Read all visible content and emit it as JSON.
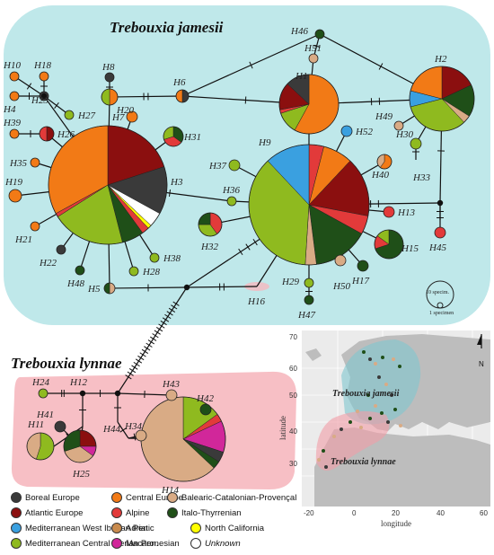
{
  "titles": {
    "jamesii": "Trebouxia jamesii",
    "lynnae": "Trebouxia lynnae"
  },
  "colors": {
    "boreal": "#3a3a3a",
    "atlantic": "#8b0f0f",
    "med_west_iberian": "#3aa0e0",
    "med_central_iberian": "#8fba1f",
    "central_europe": "#f27a16",
    "alpine": "#e23a3a",
    "adriatic": "#c98b4e",
    "macaronesian": "#d1279a",
    "balearic": "#d9ab85",
    "italo": "#1f4f18",
    "north_california": "#ffff00",
    "unknown": "#ffffff",
    "jamesii_bg": "#bfe8ea",
    "lynnae_bg": "#f6b8bf"
  },
  "legend": [
    {
      "key": "boreal",
      "label": "Boreal Europe"
    },
    {
      "key": "central_europe",
      "label": "Central Europe"
    },
    {
      "key": "balearic",
      "label": "Balearic-Catalonian-Provençal"
    },
    {
      "key": "atlantic",
      "label": "Atlantic Europe"
    },
    {
      "key": "alpine",
      "label": "Alpine"
    },
    {
      "key": "italo",
      "label": "Italo-Thyrrenian"
    },
    {
      "key": "med_west_iberian",
      "label": "Mediterranean West Iberian Pen."
    },
    {
      "key": "adriatic",
      "label": "Adriatic"
    },
    {
      "key": "north_california",
      "label": "North California"
    },
    {
      "key": "med_central_iberian",
      "label": "Mediterranean Central Iberian Pen."
    },
    {
      "key": "macaronesian",
      "label": "Macaronesian"
    },
    {
      "key": "unknown",
      "label": "Unknown"
    }
  ],
  "scale": {
    "big": "10 specim.",
    "small": "1 specimen"
  },
  "map": {
    "title_jamesii": "Trebouxia jamesii",
    "title_lynnae": "Trebouxia lynnae",
    "ylabel": "latitude",
    "xlabel": "longitude",
    "x_ticks": [
      "-20",
      "0",
      "20",
      "40",
      "60"
    ],
    "y_ticks": [
      "70",
      "60",
      "50",
      "40",
      "30"
    ],
    "north": "N"
  },
  "haplotypes": [
    {
      "id": "H1",
      "label": "H1",
      "slices": [
        [
          "central_europe",
          0.58
        ],
        [
          "med_central_iberian",
          0.12
        ],
        [
          "alpine",
          0.02
        ],
        [
          "atlantic",
          0.15
        ],
        [
          "boreal",
          0.13
        ]
      ]
    },
    {
      "id": "H2",
      "label": "H2",
      "slices": [
        [
          "atlantic",
          0.18
        ],
        [
          "italo",
          0.16
        ],
        [
          "balearic",
          0.04
        ],
        [
          "med_central_iberian",
          0.33
        ],
        [
          "med_west_iberian",
          0.08
        ],
        [
          "central_europe",
          0.21
        ]
      ]
    },
    {
      "id": "H3",
      "label": "H3",
      "slices": [
        [
          "atlantic",
          0.2
        ],
        [
          "boreal",
          0.13
        ],
        [
          "unknown",
          0.04
        ],
        [
          "north_california",
          0.01
        ],
        [
          "alpine",
          0.02
        ],
        [
          "italo",
          0.06
        ],
        [
          "med_central_iberian",
          0.2
        ],
        [
          "alpine",
          0.01
        ],
        [
          "central_europe",
          0.33
        ]
      ]
    },
    {
      "id": "H5",
      "label": "H5",
      "slices": [
        [
          "balearic",
          0.5
        ],
        [
          "italo",
          0.5
        ]
      ]
    },
    {
      "id": "H6",
      "label": "H6",
      "slices": [
        [
          "boreal",
          0.5
        ],
        [
          "central_europe",
          0.5
        ]
      ]
    },
    {
      "id": "H7",
      "label": "H7",
      "slices": [
        [
          "central_europe",
          1
        ]
      ]
    },
    {
      "id": "H9",
      "label": "H9",
      "slices": [
        [
          "alpine",
          0.04
        ],
        [
          "central_europe",
          0.08
        ],
        [
          "atlantic",
          0.16
        ],
        [
          "alpine",
          0.05
        ],
        [
          "italo",
          0.15
        ],
        [
          "balearic",
          0.03
        ],
        [
          "med_central_iberian",
          0.37
        ],
        [
          "med_west_iberian",
          0.12
        ]
      ]
    },
    {
      "id": "H14",
      "label": "H14",
      "slices": [
        [
          "med_central_iberian",
          0.15
        ],
        [
          "alpine",
          0.03
        ],
        [
          "macaronesian",
          0.12
        ],
        [
          "boreal",
          0.04
        ],
        [
          "italo",
          0.03
        ],
        [
          "balearic",
          0.63
        ]
      ]
    },
    {
      "id": "H15",
      "label": "H15",
      "slices": [
        [
          "italo",
          0.7
        ],
        [
          "alpine",
          0.15
        ],
        [
          "med_central_iberian",
          0.15
        ]
      ]
    },
    {
      "id": "H25",
      "label": "H25",
      "slices": [
        [
          "atlantic",
          0.25
        ],
        [
          "macaronesian",
          0.1
        ],
        [
          "balearic",
          0.35
        ],
        [
          "italo",
          0.3
        ]
      ]
    },
    {
      "id": "H11",
      "label": "H11",
      "slices": [
        [
          "med_central_iberian",
          0.55
        ],
        [
          "balearic",
          0.45
        ]
      ]
    },
    {
      "id": "H31",
      "label": "H31",
      "slices": [
        [
          "italo",
          0.35
        ],
        [
          "alpine",
          0.35
        ],
        [
          "med_central_iberian",
          0.3
        ]
      ]
    },
    {
      "id": "H32",
      "label": "H32",
      "slices": [
        [
          "alpine",
          0.4
        ],
        [
          "med_central_iberian",
          0.35
        ],
        [
          "italo",
          0.25
        ]
      ]
    },
    {
      "id": "H20",
      "label": "H20",
      "slices": [
        [
          "central_europe",
          0.5
        ],
        [
          "med_central_iberian",
          0.5
        ]
      ]
    },
    {
      "id": "H26",
      "label": "H26",
      "slices": [
        [
          "atlantic",
          0.5
        ],
        [
          "alpine",
          0.5
        ]
      ]
    },
    {
      "id": "H40",
      "label": "H40",
      "slices": [
        [
          "central_europe",
          0.6
        ],
        [
          "balearic",
          0.4
        ]
      ]
    },
    {
      "id": "H30",
      "label": "H30",
      "slices": [
        [
          "med_central_iberian",
          1
        ]
      ]
    },
    {
      "id": "H8",
      "label": "H8",
      "slices": [
        [
          "boreal",
          1
        ]
      ]
    },
    {
      "id": "H10",
      "label": "H10",
      "slices": [
        [
          "central_europe",
          1
        ]
      ]
    },
    {
      "id": "H18",
      "label": "H18",
      "slices": [
        [
          "central_europe",
          1
        ]
      ]
    },
    {
      "id": "H4",
      "label": "H4",
      "slices": [
        [
          "central_europe",
          1
        ]
      ]
    },
    {
      "id": "H23",
      "label": "H23",
      "slices": [
        [
          "boreal",
          1
        ]
      ]
    },
    {
      "id": "H27",
      "label": "H27",
      "slices": [
        [
          "med_central_iberian",
          1
        ]
      ]
    },
    {
      "id": "H39",
      "label": "H39",
      "slices": [
        [
          "central_europe",
          1
        ]
      ]
    },
    {
      "id": "H35",
      "label": "H35",
      "slices": [
        [
          "central_europe",
          1
        ]
      ]
    },
    {
      "id": "H19",
      "label": "H19",
      "slices": [
        [
          "central_europe",
          1
        ]
      ]
    },
    {
      "id": "H21",
      "label": "H21",
      "slices": [
        [
          "central_europe",
          1
        ]
      ]
    },
    {
      "id": "H22",
      "label": "H22",
      "slices": [
        [
          "boreal",
          1
        ]
      ]
    },
    {
      "id": "H48",
      "label": "H48",
      "slices": [
        [
          "italo",
          1
        ]
      ]
    },
    {
      "id": "H28",
      "label": "H28",
      "slices": [
        [
          "med_central_iberian",
          1
        ]
      ]
    },
    {
      "id": "H38",
      "label": "H38",
      "slices": [
        [
          "med_central_iberian",
          1
        ]
      ]
    },
    {
      "id": "H36",
      "label": "H36",
      "slices": [
        [
          "med_central_iberian",
          1
        ]
      ]
    },
    {
      "id": "H37",
      "label": "H37",
      "slices": [
        [
          "med_central_iberian",
          1
        ]
      ]
    },
    {
      "id": "H46",
      "label": "H46",
      "slices": [
        [
          "italo",
          1
        ]
      ]
    },
    {
      "id": "H51",
      "label": "H51",
      "slices": [
        [
          "balearic",
          1
        ]
      ]
    },
    {
      "id": "H49",
      "label": "H49",
      "slices": [
        [
          "balearic",
          1
        ]
      ]
    },
    {
      "id": "H52",
      "label": "H52",
      "slices": [
        [
          "med_west_iberian",
          1
        ]
      ]
    },
    {
      "id": "H33",
      "label": "H33",
      "slices": [
        [
          "atlantic",
          1
        ]
      ]
    },
    {
      "id": "H13",
      "label": "H13",
      "slices": [
        [
          "alpine",
          1
        ]
      ]
    },
    {
      "id": "H45",
      "label": "H45",
      "slices": [
        [
          "alpine",
          1
        ]
      ]
    },
    {
      "id": "H17",
      "label": "H17",
      "slices": [
        [
          "italo",
          1
        ]
      ]
    },
    {
      "id": "H50",
      "label": "H50",
      "slices": [
        [
          "balearic",
          1
        ]
      ]
    },
    {
      "id": "H29",
      "label": "H29",
      "slices": [
        [
          "med_central_iberian",
          1
        ]
      ]
    },
    {
      "id": "H47",
      "label": "H47",
      "slices": [
        [
          "italo",
          1
        ]
      ]
    },
    {
      "id": "H16",
      "label": "H16",
      "slices": []
    },
    {
      "id": "H24",
      "label": "H24",
      "slices": [
        [
          "med_central_iberian",
          1
        ]
      ]
    },
    {
      "id": "H12",
      "label": "H12",
      "slices": []
    },
    {
      "id": "H43",
      "label": "H43",
      "slices": [
        [
          "balearic",
          1
        ]
      ]
    },
    {
      "id": "H42",
      "label": "H42",
      "slices": [
        [
          "italo",
          1
        ]
      ]
    },
    {
      "id": "H41",
      "label": "H41",
      "slices": [
        [
          "boreal",
          1
        ]
      ]
    },
    {
      "id": "H34",
      "label": "H34",
      "slices": [
        [
          "balearic",
          1
        ]
      ]
    },
    {
      "id": "H44",
      "label": "H44",
      "slices": [
        [
          "balearic",
          1
        ]
      ]
    }
  ]
}
